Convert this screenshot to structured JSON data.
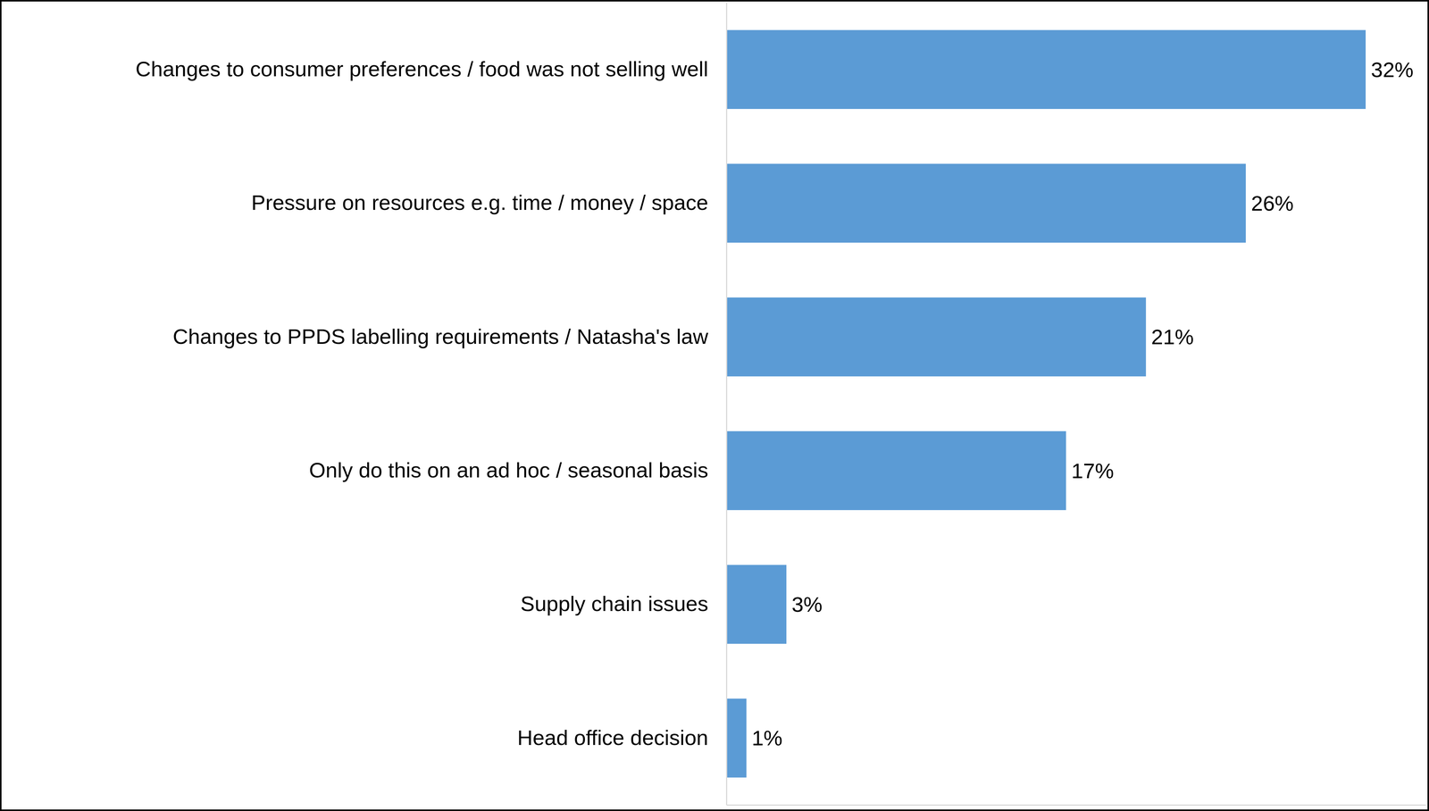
{
  "chart_data": {
    "type": "bar",
    "orientation": "horizontal",
    "categories": [
      "Changes to consumer preferences / food was not selling well",
      "Pressure on resources e.g. time / money / space",
      "Changes to PPDS labelling requirements / Natasha's law",
      "Only do this on an ad hoc / seasonal basis",
      "Supply chain issues",
      "Head office decision"
    ],
    "values": [
      32,
      26,
      21,
      17,
      3,
      1
    ],
    "value_labels": [
      "32%",
      "26%",
      "21%",
      "17%",
      "3%",
      "1%"
    ],
    "color": "#5b9bd5",
    "xlim": [
      0,
      35
    ],
    "data_labels": true,
    "tick_labels": "y",
    "grid": false
  }
}
